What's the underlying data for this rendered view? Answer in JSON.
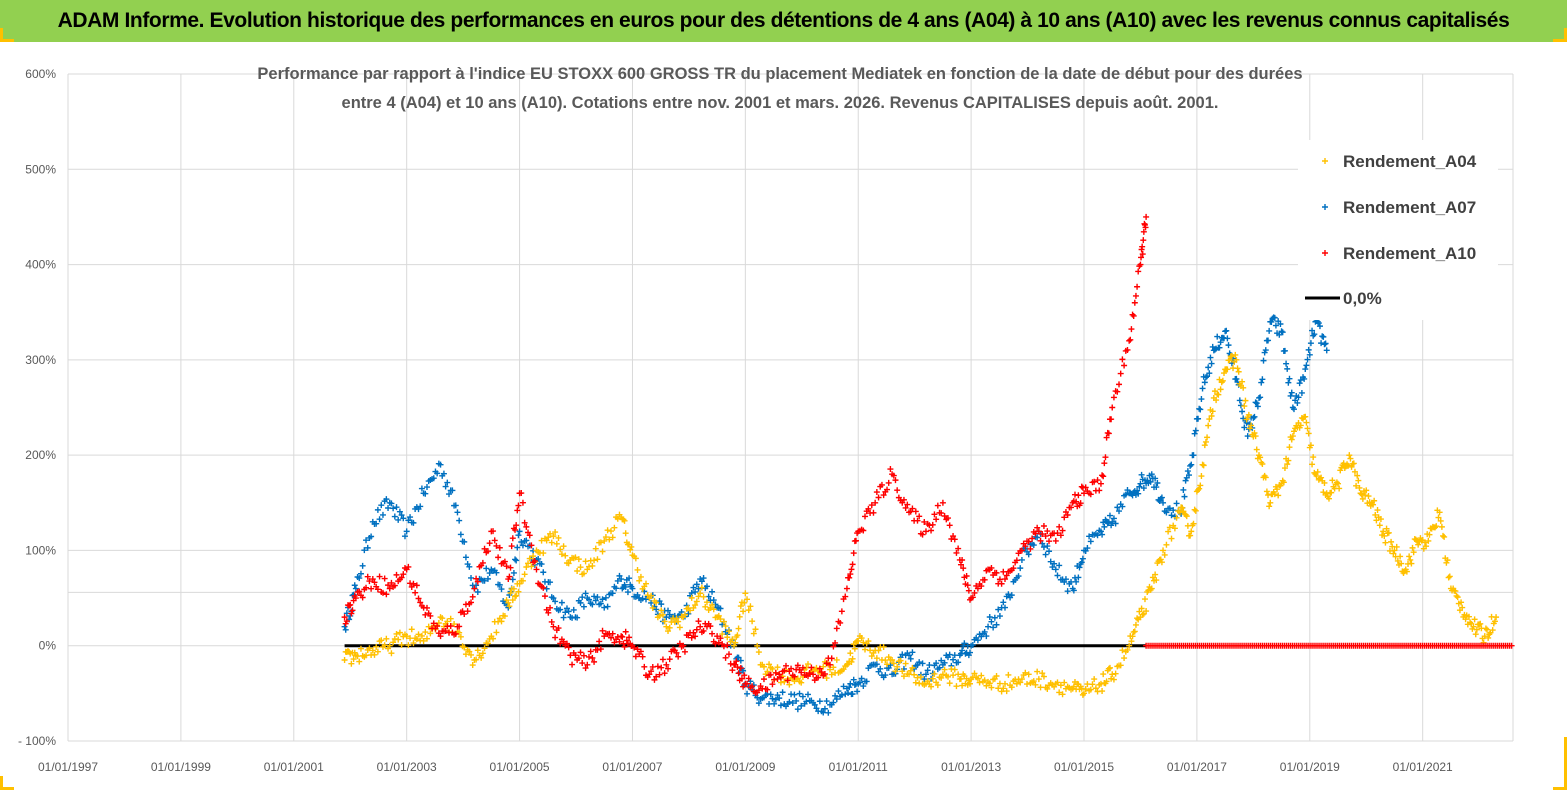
{
  "header": {
    "title": "ADAM Informe. Evolution historique des performances en euros pour des détentions de 4 ans (A04) à 10 ans (A10) avec les revenus connus capitalisés"
  },
  "colors": {
    "header_bg": "#92d050",
    "corner": "#ffc000",
    "a04": "#ffc000",
    "a07": "#0070c0",
    "a10": "#ff0000",
    "zero_line": "#000000",
    "grid": "#d9d9d9"
  },
  "chart_data": {
    "type": "scatter",
    "title_lines": [
      "Performance par rapport à l'indice EU STOXX 600 GROSS TR  du placement Mediatek  en fonction de la date de début pour des durées",
      "entre 4 (A04) et 10 ans (A10). Cotations entre nov. 2001 et mars. 2026. Revenus CAPITALISES depuis août. 2001."
    ],
    "xlabel": "",
    "ylabel": "",
    "x_ticks": [
      "01/01/1997",
      "01/01/1999",
      "01/01/2001",
      "01/01/2003",
      "01/01/2005",
      "01/01/2007",
      "01/01/2009",
      "01/01/2011",
      "01/01/2013",
      "01/01/2015",
      "01/01/2017",
      "01/01/2019",
      "01/01/2021"
    ],
    "xlim": [
      1997.0,
      2022.6
    ],
    "y_ticks": [
      "- 100%",
      "0%",
      "100%",
      "200%",
      "300%",
      "400%",
      "500%",
      "600%"
    ],
    "ylim": [
      -100,
      600
    ],
    "grid": true,
    "legend_position": "top-right",
    "series": [
      {
        "name": "Rendement_A04",
        "x": [
          2001.9,
          2002.1,
          2002.4,
          2002.7,
          2003.0,
          2003.3,
          2003.6,
          2003.9,
          2004.2,
          2004.5,
          2004.8,
          2005.0,
          2005.3,
          2005.6,
          2005.9,
          2006.2,
          2006.5,
          2006.8,
          2007.0,
          2007.3,
          2007.6,
          2007.9,
          2008.2,
          2008.5,
          2008.8,
          2009.0,
          2009.3,
          2009.6,
          2009.9,
          2010.2,
          2010.5,
          2010.8,
          2011.0,
          2011.3,
          2011.6,
          2011.9,
          2012.2,
          2012.5,
          2012.8,
          2013.0,
          2013.3,
          2013.6,
          2013.9,
          2014.2,
          2014.5,
          2014.8,
          2015.0,
          2015.3,
          2015.5,
          2015.8,
          2016.0,
          2016.2,
          2016.4,
          2016.7,
          2016.9,
          2017.1,
          2017.3,
          2017.5,
          2017.7,
          2017.9,
          2018.1,
          2018.3,
          2018.5,
          2018.7,
          2018.9,
          2019.1,
          2019.3,
          2019.5,
          2019.7,
          2019.9,
          2020.1,
          2020.3,
          2020.5,
          2020.7,
          2020.9,
          2021.1,
          2021.3,
          2021.5,
          2021.7,
          2021.9,
          2022.1,
          2022.3
        ],
        "y": [
          -15,
          -10,
          -5,
          0,
          10,
          5,
          30,
          15,
          -15,
          10,
          45,
          65,
          100,
          115,
          90,
          80,
          110,
          135,
          95,
          50,
          20,
          30,
          55,
          30,
          0,
          55,
          -20,
          -30,
          -35,
          -25,
          -25,
          -20,
          5,
          -5,
          -15,
          -30,
          -40,
          -30,
          -35,
          -35,
          -38,
          -40,
          -35,
          -35,
          -40,
          -45,
          -50,
          -40,
          -30,
          0,
          30,
          60,
          100,
          140,
          120,
          190,
          260,
          290,
          300,
          240,
          200,
          150,
          170,
          220,
          240,
          180,
          160,
          170,
          200,
          160,
          150,
          120,
          100,
          80,
          110,
          110,
          140,
          60,
          40,
          20,
          10,
          30
        ]
      },
      {
        "name": "Rendement_A07",
        "x": [
          2001.9,
          2002.1,
          2002.4,
          2002.7,
          2003.0,
          2003.3,
          2003.6,
          2003.9,
          2004.2,
          2004.5,
          2004.8,
          2005.0,
          2005.3,
          2005.6,
          2005.9,
          2006.2,
          2006.5,
          2006.8,
          2007.0,
          2007.3,
          2007.6,
          2007.9,
          2008.2,
          2008.5,
          2008.8,
          2009.0,
          2009.3,
          2009.6,
          2009.9,
          2010.2,
          2010.5,
          2010.8,
          2011.0,
          2011.3,
          2011.6,
          2011.9,
          2012.2,
          2012.5,
          2012.8,
          2013.0,
          2013.3,
          2013.6,
          2013.9,
          2014.2,
          2014.5,
          2014.8,
          2015.0,
          2015.3,
          2015.5,
          2015.8,
          2016.0,
          2016.2,
          2016.4,
          2016.7,
          2016.9,
          2017.1,
          2017.3,
          2017.5,
          2017.7,
          2017.9,
          2018.1,
          2018.3,
          2018.5,
          2018.7,
          2018.9,
          2019.1,
          2019.3
        ],
        "y": [
          20,
          60,
          130,
          150,
          120,
          160,
          190,
          140,
          60,
          80,
          40,
          120,
          90,
          50,
          30,
          50,
          40,
          70,
          60,
          50,
          30,
          30,
          70,
          40,
          0,
          -40,
          -55,
          -55,
          -58,
          -60,
          -62,
          -45,
          -40,
          -20,
          -30,
          -10,
          -30,
          -20,
          -10,
          0,
          20,
          40,
          90,
          120,
          80,
          60,
          100,
          120,
          130,
          160,
          170,
          180,
          150,
          140,
          190,
          270,
          310,
          330,
          280,
          220,
          260,
          340,
          330,
          250,
          280,
          340,
          310
        ]
      },
      {
        "name": "Rendement_A10",
        "x": [
          2001.9,
          2002.1,
          2002.4,
          2002.7,
          2003.0,
          2003.3,
          2003.6,
          2003.9,
          2004.2,
          2004.5,
          2004.8,
          2005.0,
          2005.3,
          2005.6,
          2005.9,
          2006.2,
          2006.5,
          2006.8,
          2007.0,
          2007.3,
          2007.6,
          2007.9,
          2008.2,
          2008.5,
          2008.8,
          2009.0,
          2009.3,
          2009.6,
          2009.9,
          2010.2,
          2010.5,
          2010.8,
          2011.0,
          2011.3,
          2011.6,
          2011.9,
          2012.2,
          2012.5,
          2012.8,
          2013.0,
          2013.3,
          2013.6,
          2013.9,
          2014.2,
          2014.5,
          2014.8,
          2015.0,
          2015.3,
          2015.5,
          2015.8,
          2016.0,
          2016.1
        ],
        "y": [
          30,
          50,
          70,
          60,
          80,
          40,
          10,
          20,
          60,
          120,
          70,
          160,
          80,
          20,
          -10,
          -20,
          10,
          10,
          0,
          -30,
          -20,
          0,
          20,
          10,
          -20,
          -40,
          -45,
          -30,
          -25,
          -30,
          -20,
          60,
          120,
          150,
          180,
          140,
          120,
          150,
          90,
          50,
          80,
          70,
          100,
          120,
          110,
          150,
          160,
          170,
          250,
          320,
          400,
          450
        ]
      },
      {
        "name": "0,0%",
        "x": [
          2001.9,
          2016.1
        ],
        "y": [
          0,
          0
        ]
      }
    ]
  }
}
